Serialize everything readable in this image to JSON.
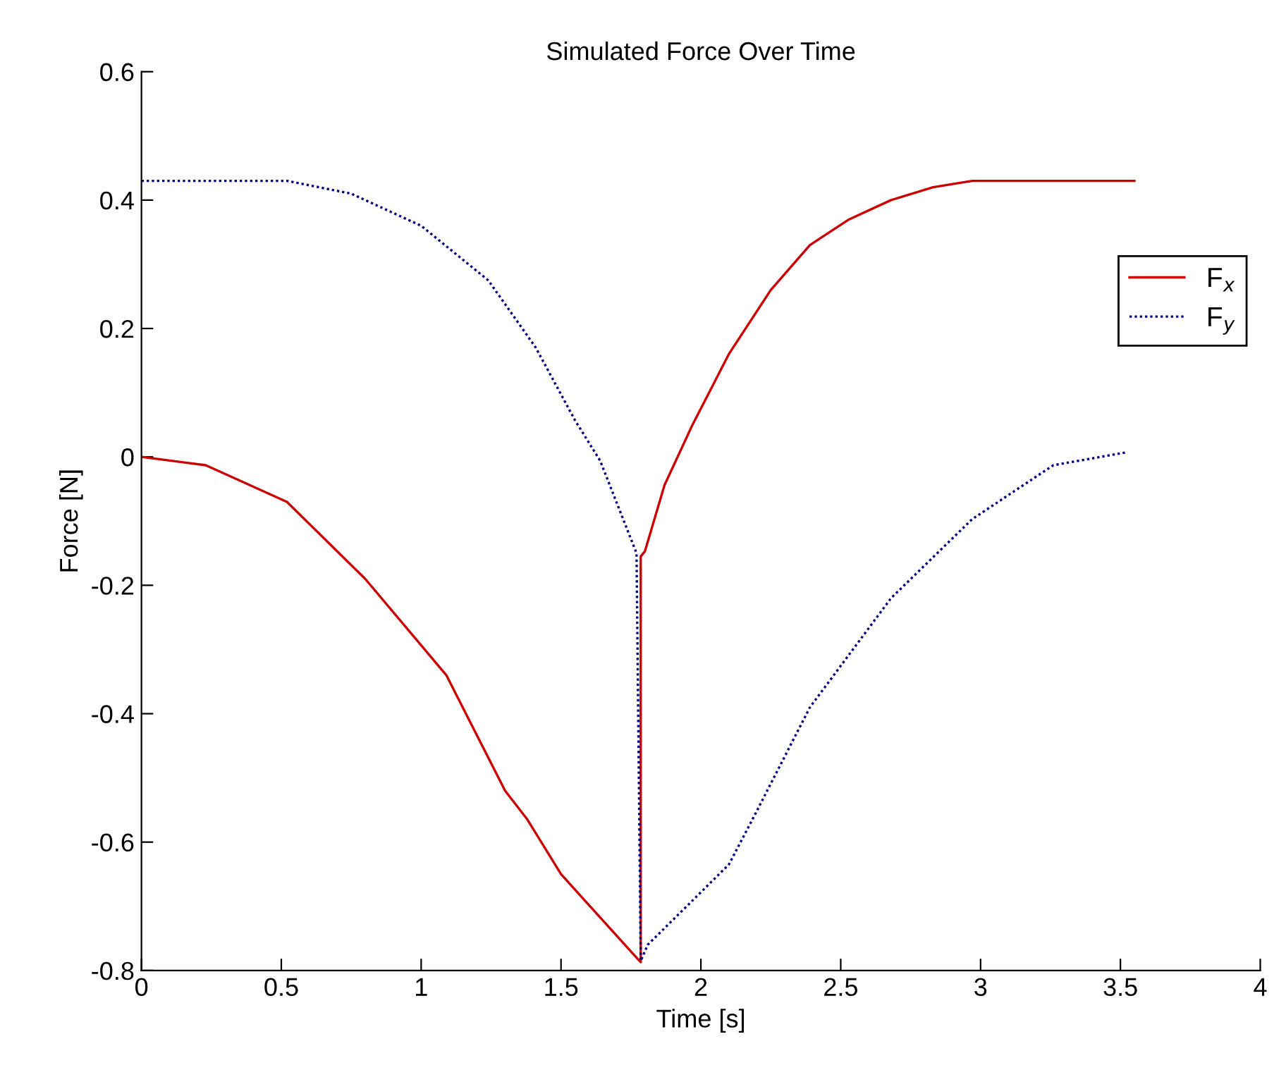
{
  "chart_data": {
    "type": "line",
    "title": "Simulated Force Over Time",
    "xlabel": "Time [s]",
    "ylabel": "Force [N]",
    "xlim": [
      0,
      4
    ],
    "xticks": [
      0,
      0.5,
      1,
      1.5,
      2,
      2.5,
      3,
      3.5,
      4
    ],
    "ylim": [
      -0.8,
      0.6
    ],
    "yticks": [
      {
        "value": -0.8,
        "label": "-0.8"
      },
      {
        "value": -0.6,
        "label": "-0.6"
      },
      {
        "value": -0.4,
        "label": "-0.4"
      },
      {
        "value": -0.2,
        "label": "-0.2"
      },
      0,
      0.2,
      0.4,
      0.6
    ],
    "grid": false,
    "legend": "right",
    "series": [
      {
        "name": "F$_{x}$",
        "color": "#cc0000",
        "line_style": "solid",
        "x": [
          0,
          0.23,
          0.52,
          0.8,
          1.09,
          1.3,
          1.38,
          1.5,
          1.77,
          1.785,
          1.785,
          1.8,
          1.87,
          1.97,
          2.1,
          2.25,
          2.39,
          2.53,
          2.68,
          2.83,
          2.97,
          3.55
        ],
        "values": [
          0,
          -0.013,
          -0.07,
          -0.19,
          -0.34,
          -0.52,
          -0.565,
          -0.65,
          -0.78,
          -0.787,
          -0.155,
          -0.147,
          -0.044,
          0.05,
          0.16,
          0.26,
          0.33,
          0.37,
          0.4,
          0.42,
          0.43,
          0.43
        ]
      },
      {
        "name": "F$_{y}$",
        "color": "#000080",
        "line_style": "dotted",
        "x": [
          0,
          0.52,
          0.75,
          1.0,
          1.24,
          1.41,
          1.55,
          1.64,
          1.77,
          1.785,
          1.81,
          2.1,
          2.19,
          2.39,
          2.68,
          2.97,
          3.26,
          3.52
        ],
        "values": [
          0.43,
          0.43,
          0.41,
          0.36,
          0.275,
          0.17,
          0.057,
          -0.006,
          -0.15,
          -0.785,
          -0.76,
          -0.635,
          -0.56,
          -0.39,
          -0.22,
          -0.097,
          -0.013,
          0.007
        ]
      }
    ]
  }
}
